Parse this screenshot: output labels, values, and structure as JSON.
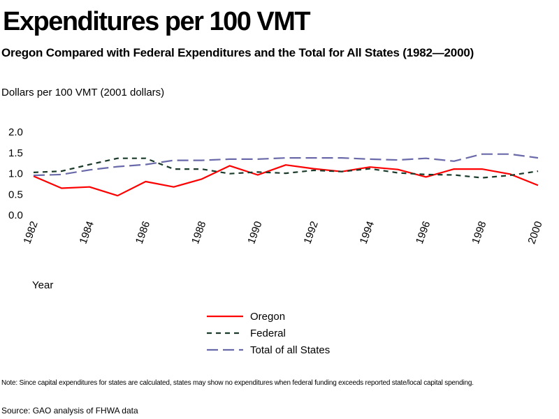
{
  "chart_data": {
    "type": "line",
    "title": "Expenditures per 100 VMT",
    "subtitle": "Oregon Compared with Federal Expenditures and the Total for All States (1982—2000)",
    "ylabel": "Dollars per 100 VMT (2001 dollars)",
    "xlabel": "Year",
    "x": [
      1982,
      1983,
      1984,
      1985,
      1986,
      1987,
      1988,
      1989,
      1990,
      1991,
      1992,
      1993,
      1994,
      1995,
      1996,
      1997,
      1998,
      1999,
      2000
    ],
    "x_tick_labels": [
      "1982",
      "1984",
      "1986",
      "1988",
      "1990",
      "1992",
      "1994",
      "1996",
      "1998",
      "2000"
    ],
    "y_tick_labels": [
      "2.0",
      "1.5",
      "1.0",
      "0.5",
      "0.0"
    ],
    "ylim": [
      0,
      2.0
    ],
    "grid": false,
    "legend_position": "bottom-center",
    "series": [
      {
        "name": "Oregon",
        "color": "#ff0000",
        "style": "solid",
        "values": [
          0.92,
          0.63,
          0.66,
          0.45,
          0.79,
          0.66,
          0.85,
          1.17,
          0.95,
          1.19,
          1.1,
          1.03,
          1.14,
          1.08,
          0.9,
          1.09,
          1.09,
          0.97,
          0.7
        ]
      },
      {
        "name": "Federal",
        "color": "#1a3a2a",
        "style": "dotted",
        "values": [
          1.01,
          1.04,
          1.2,
          1.35,
          1.35,
          1.09,
          1.09,
          0.98,
          1.02,
          0.99,
          1.06,
          1.03,
          1.1,
          1.0,
          0.96,
          0.95,
          0.88,
          0.94,
          1.04
        ]
      },
      {
        "name": "Total of all States",
        "color": "#6a6aaa",
        "style": "dashed",
        "values": [
          0.94,
          0.96,
          1.07,
          1.15,
          1.2,
          1.3,
          1.3,
          1.33,
          1.33,
          1.36,
          1.36,
          1.36,
          1.33,
          1.31,
          1.35,
          1.28,
          1.45,
          1.45,
          1.36
        ]
      }
    ],
    "note": "Note: Since capital expenditures for states are calculated, states may show no expenditures when federal funding exceeds reported state/local capital spending.",
    "source": "Source: GAO analysis of FHWA data"
  }
}
